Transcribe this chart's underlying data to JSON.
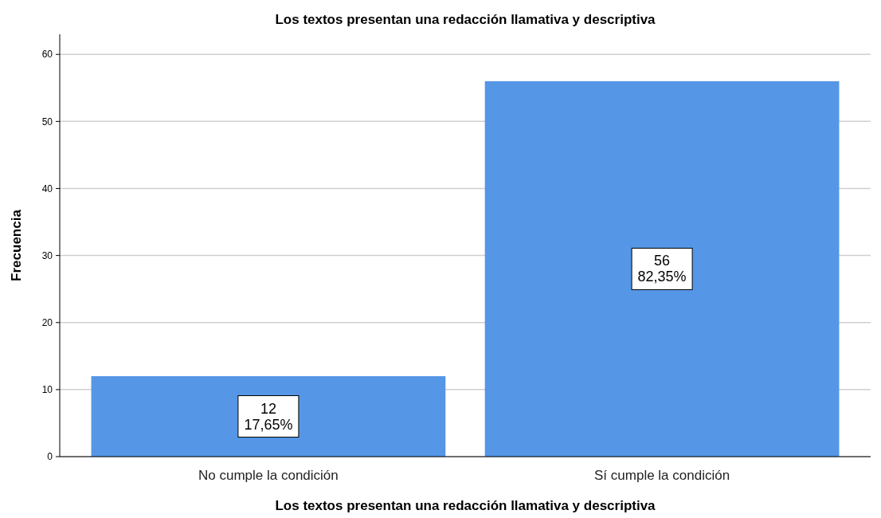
{
  "chart_data": {
    "type": "bar",
    "title": "Los textos presentan una redacción llamativa y descriptiva",
    "xlabel": "Los textos presentan una redacción llamativa y descriptiva",
    "ylabel": "Frecuencia",
    "categories": [
      "No cumple la condición",
      "Sí cumple la condición"
    ],
    "values": [
      12,
      56
    ],
    "color": "#5596e6",
    "value_labels": [
      "12\n17,65%",
      "56\n82,35%"
    ],
    "ylim": [
      0,
      63
    ],
    "yticks": [
      0,
      10,
      20,
      30,
      40,
      50,
      60
    ],
    "grid": "y"
  }
}
